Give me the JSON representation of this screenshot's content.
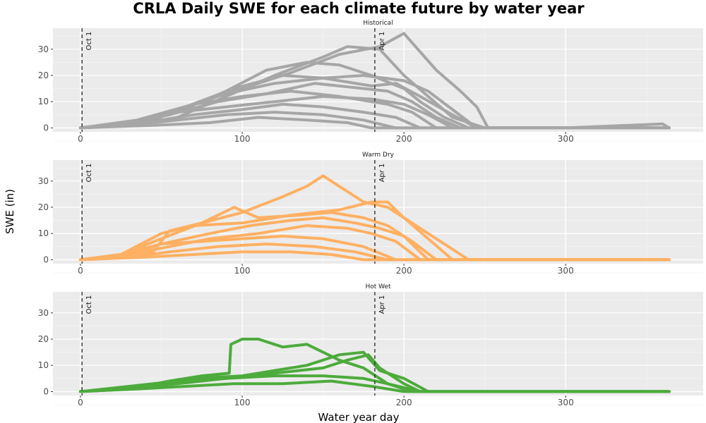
{
  "chart_data": {
    "type": "line",
    "title": "CRLA Daily SWE for each climate future by water year",
    "xlabel": "Water year day",
    "ylabel": "SWE (in)",
    "xlim": [
      -17,
      385
    ],
    "ylim": [
      -1.5,
      38
    ],
    "x_ticks": [
      0,
      100,
      200,
      300
    ],
    "y_ticks": [
      0,
      10,
      20,
      30
    ],
    "grid": true,
    "legend": "none",
    "vlines": [
      {
        "x": 1,
        "label": "Oct 1"
      },
      {
        "x": 182,
        "label": "Apr 1"
      }
    ],
    "panels": [
      {
        "strip": "Historical",
        "color": "#a6a6a6",
        "series": [
          {
            "x": [
              0,
              20,
              45,
              70,
              100,
              130,
              160,
              185,
              200,
              220,
              235,
              245,
              252,
              262,
              300,
              360,
              364
            ],
            "y": [
              0,
              1,
              3,
              9,
              15,
              21,
              28,
              31,
              36,
              22,
              14,
              8,
              0,
              0,
              0,
              1.5,
              0
            ]
          },
          {
            "x": [
              0,
              30,
              60,
              90,
              120,
              150,
              165,
              185,
              200,
              215,
              230,
              250,
              300,
              364
            ],
            "y": [
              0,
              1,
              4,
              12,
              20,
              27,
              31,
              30,
              20,
              12,
              4,
              0,
              0,
              0
            ]
          },
          {
            "x": [
              0,
              30,
              60,
              90,
              115,
              140,
              160,
              180,
              200,
              210,
              225,
              240,
              300,
              364
            ],
            "y": [
              0,
              1,
              6,
              14,
              22,
              25,
              24,
              20,
              15,
              10,
              4,
              0,
              0,
              0
            ]
          },
          {
            "x": [
              0,
              35,
              65,
              95,
              125,
              150,
              175,
              200,
              215,
              230,
              245,
              300,
              364
            ],
            "y": [
              0,
              2,
              8,
              15,
              20,
              19,
              20,
              18,
              14,
              7,
              0,
              0,
              0
            ]
          },
          {
            "x": [
              0,
              30,
              60,
              90,
              120,
              150,
              180,
              195,
              210,
              230,
              245,
              300,
              364
            ],
            "y": [
              0,
              1,
              7,
              13,
              17,
              19,
              16,
              17,
              12,
              5,
              0,
              0,
              0
            ]
          },
          {
            "x": [
              0,
              25,
              55,
              85,
              115,
              145,
              175,
              190,
              205,
              220,
              235,
              300,
              364
            ],
            "y": [
              0,
              1,
              5,
              10,
              13,
              17,
              15,
              14,
              10,
              4,
              0,
              0,
              0
            ]
          },
          {
            "x": [
              0,
              30,
              60,
              90,
              120,
              150,
              180,
              200,
              215,
              230,
              300,
              364
            ],
            "y": [
              0,
              2,
              6,
              8,
              10,
              12,
              11,
              9,
              5,
              0,
              0,
              0
            ]
          },
          {
            "x": [
              0,
              35,
              70,
              100,
              130,
              160,
              190,
              205,
              220,
              300,
              364
            ],
            "y": [
              0,
              3,
              9,
              12,
              14,
              12,
              9,
              6,
              0,
              0,
              0
            ]
          },
          {
            "x": [
              0,
              40,
              70,
              100,
              125,
              150,
              175,
              195,
              210,
              300,
              364
            ],
            "y": [
              0,
              2,
              5,
              7,
              9,
              8,
              6,
              4,
              0,
              0,
              0
            ]
          },
          {
            "x": [
              0,
              30,
              60,
              90,
              120,
              150,
              175,
              195,
              300,
              364
            ],
            "y": [
              0,
              1,
              3,
              5,
              6,
              5,
              3,
              0,
              0,
              0
            ]
          },
          {
            "x": [
              0,
              45,
              80,
              110,
              140,
              165,
              180,
              300,
              364
            ],
            "y": [
              0,
              1,
              2,
              4,
              3,
              2,
              0,
              0,
              0
            ]
          }
        ]
      },
      {
        "strip": "Warm Dry",
        "color": "#ffb062",
        "series": [
          {
            "x": [
              0,
              25,
              45,
              55,
              75,
              100,
              125,
              140,
              150,
              160,
              175,
              190,
              205,
              215,
              230,
              240,
              300,
              364
            ],
            "y": [
              0,
              2,
              3,
              11,
              14,
              18,
              24,
              28,
              32,
              28,
              22,
              20,
              14,
              10,
              4,
              0,
              0,
              0
            ]
          },
          {
            "x": [
              0,
              25,
              50,
              70,
              100,
              130,
              160,
              180,
              190,
              200,
              215,
              230,
              300,
              364
            ],
            "y": [
              0,
              2,
              10,
              13,
              14,
              17,
              19,
              22,
              22,
              16,
              8,
              0,
              0,
              0
            ]
          },
          {
            "x": [
              0,
              25,
              50,
              75,
              95,
              110,
              135,
              155,
              175,
              190,
              205,
              220,
              300,
              364
            ],
            "y": [
              0,
              2,
              8,
              14,
              20,
              16,
              17,
              18,
              16,
              13,
              7,
              0,
              0,
              0
            ]
          },
          {
            "x": [
              0,
              25,
              50,
              80,
              105,
              130,
              150,
              170,
              185,
              200,
              215,
              300,
              364
            ],
            "y": [
              0,
              1,
              6,
              10,
              13,
              15,
              16,
              14,
              12,
              9,
              0,
              0,
              0
            ]
          },
          {
            "x": [
              0,
              30,
              55,
              80,
              110,
              140,
              165,
              180,
              195,
              210,
              300,
              364
            ],
            "y": [
              0,
              2,
              5,
              8,
              10,
              13,
              12,
              10,
              7,
              0,
              0,
              0
            ]
          },
          {
            "x": [
              0,
              25,
              50,
              75,
              100,
              125,
              150,
              175,
              195,
              300,
              364
            ],
            "y": [
              0,
              2,
              6,
              7,
              8,
              9,
              8,
              5,
              0,
              0,
              0
            ]
          },
          {
            "x": [
              0,
              30,
              55,
              85,
              115,
              145,
              170,
              190,
              300,
              364
            ],
            "y": [
              0,
              1,
              3,
              5,
              6,
              5,
              3,
              0,
              0,
              0
            ]
          },
          {
            "x": [
              0,
              40,
              70,
              100,
              130,
              155,
              175,
              300,
              364
            ],
            "y": [
              0,
              1,
              2,
              3,
              3,
              2,
              0,
              0,
              0
            ]
          }
        ]
      },
      {
        "strip": "Hot Wet",
        "color": "#4dab3c",
        "series": [
          {
            "x": [
              0,
              30,
              55,
              75,
              92,
              93,
              100,
              110,
              125,
              140,
              150,
              160,
              175,
              190,
              210,
              300,
              364
            ],
            "y": [
              0,
              1,
              4,
              6,
              7,
              18,
              20,
              20,
              17,
              18,
              15,
              12,
              9,
              3,
              0,
              0,
              0
            ]
          },
          {
            "x": [
              0,
              40,
              70,
              100,
              120,
              140,
              160,
              175,
              185,
              200,
              215,
              300,
              364
            ],
            "y": [
              0,
              2,
              5,
              6,
              8,
              10,
              14,
              15,
              8,
              5,
              0,
              0,
              0
            ]
          },
          {
            "x": [
              0,
              30,
              60,
              90,
              120,
              150,
              165,
              178,
              185,
              200,
              210,
              300,
              364
            ],
            "y": [
              0,
              1,
              3,
              5,
              7,
              9,
              12,
              14,
              9,
              3,
              0,
              0,
              0
            ]
          },
          {
            "x": [
              0,
              30,
              60,
              90,
              120,
              150,
              175,
              190,
              205,
              300,
              364
            ],
            "y": [
              0,
              2,
              4,
              5,
              6,
              6,
              5,
              3,
              0,
              0,
              0
            ]
          },
          {
            "x": [
              0,
              35,
              65,
              95,
              125,
              155,
              180,
              200,
              300,
              364
            ],
            "y": [
              0,
              1,
              2,
              3,
              3,
              4,
              2,
              0,
              0,
              0
            ]
          }
        ]
      }
    ]
  }
}
